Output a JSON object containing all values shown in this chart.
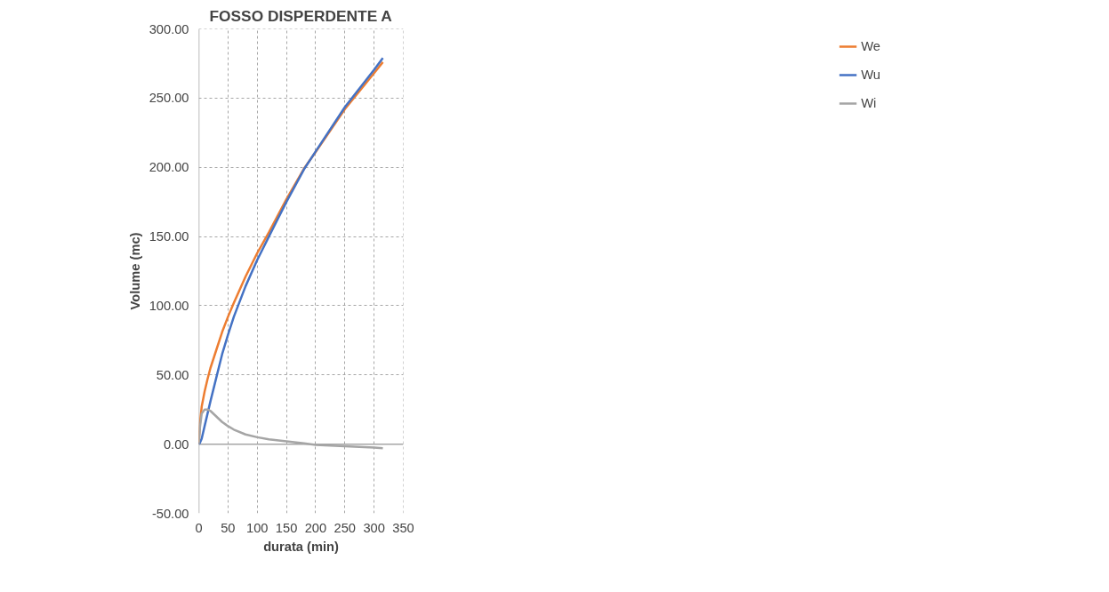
{
  "chart_data": {
    "type": "line",
    "title": "FOSSO DISPERDENTE A",
    "xlabel": "durata (min)",
    "ylabel": "Volume (mc)",
    "x": [
      0,
      2,
      5,
      10,
      15,
      20,
      30,
      40,
      50,
      60,
      80,
      100,
      120,
      150,
      180,
      200,
      250,
      300,
      315
    ],
    "series": [
      {
        "name": "We",
        "color": "#ed7d31",
        "values": [
          0,
          15,
          27,
          38,
          47,
          55,
          68,
          81,
          92,
          102,
          121,
          138,
          153,
          177,
          199,
          211,
          242,
          268,
          276
        ]
      },
      {
        "name": "Wu",
        "color": "#4472c4",
        "values": [
          0,
          1,
          4,
          13,
          22,
          31,
          48,
          65,
          79,
          92,
          114,
          133,
          150,
          175,
          198.5,
          211.5,
          243.5,
          270.5,
          279
        ]
      },
      {
        "name": "Wi",
        "color": "#a5a5a5",
        "values": [
          0,
          12,
          22,
          25,
          25,
          24,
          20,
          16,
          13,
          10.5,
          7,
          5,
          3.5,
          2,
          0.5,
          -0.5,
          -1.5,
          -2.5,
          -3
        ]
      }
    ],
    "xlim": [
      0,
      350
    ],
    "xticks": [
      0,
      50,
      100,
      150,
      200,
      250,
      300,
      350
    ],
    "ylim": [
      -50,
      300
    ],
    "yticks": [
      {
        "value": -50,
        "label": "-50.00"
      },
      {
        "value": 0,
        "label": "0.00"
      },
      {
        "value": 50,
        "label": "50.00"
      },
      {
        "value": 100,
        "label": "100.00"
      },
      {
        "value": 150,
        "label": "150.00"
      },
      {
        "value": 200,
        "label": "200.00"
      },
      {
        "value": 250,
        "label": "250.00"
      },
      {
        "value": 300,
        "label": "300.00"
      }
    ],
    "grid": true,
    "legend": "right",
    "marker": "none",
    "line_style": "solid"
  }
}
